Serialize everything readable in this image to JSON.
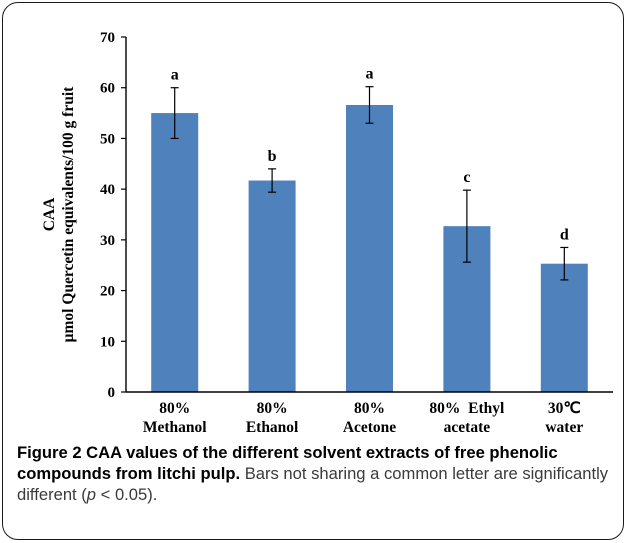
{
  "chart_data": {
    "type": "bar",
    "categories": [
      [
        "80%",
        "Methanol"
      ],
      [
        "80%",
        "Ethanol"
      ],
      [
        "80%",
        "Acetone"
      ],
      [
        "80%  Ethyl",
        "acetate"
      ],
      [
        "30℃",
        "water"
      ]
    ],
    "values": [
      55.0,
      41.7,
      56.6,
      32.7,
      25.3
    ],
    "errors": [
      5.0,
      2.3,
      3.6,
      7.1,
      3.2
    ],
    "significance_letters": [
      "a",
      "b",
      "a",
      "c",
      "d"
    ],
    "ylabel": [
      "CAA",
      "μmol Quercetin equivalents/100 g fruit"
    ],
    "ylim": [
      0,
      70
    ],
    "yticks": [
      0,
      10,
      20,
      30,
      40,
      50,
      60,
      70
    ],
    "bar_color": "#4f81bd",
    "grid": false,
    "legend": "none"
  },
  "caption": {
    "bold": "Figure 2 CAA values of the different solvent extracts of free phenolic compounds from litchi pulp.",
    "text_before_p": " Bars not sharing a common letter are significantly different (",
    "p_symbol": "p",
    "text_after_p": " < 0.05)."
  }
}
